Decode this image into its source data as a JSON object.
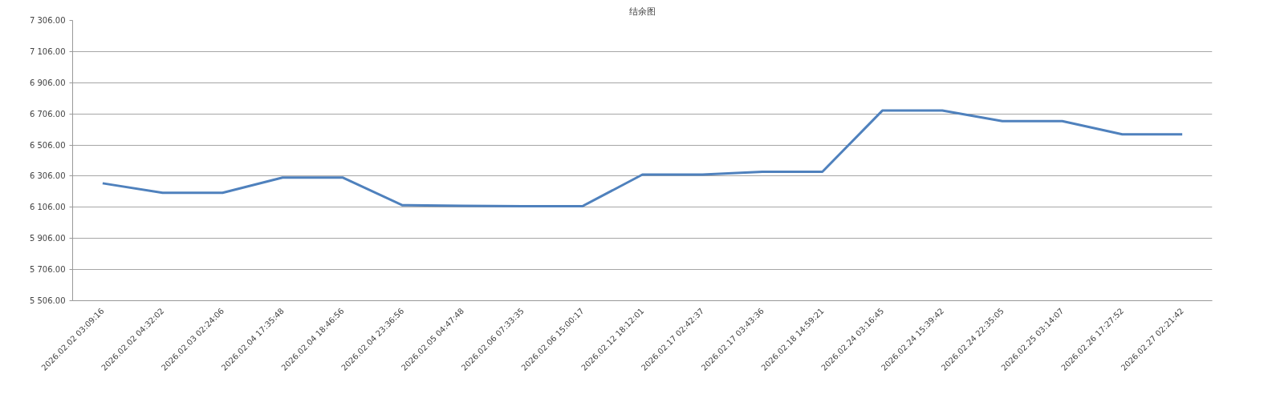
{
  "chart_data": {
    "type": "line",
    "title": "结余图",
    "categories": [
      "2026.02.02 03:09:16",
      "2026.02.02 04:32:02",
      "2026.02.03 02:24:06",
      "2026.02.04 17:35:48",
      "2026.02.04 18:46:56",
      "2026.02.04 23:36:56",
      "2026.02.05 04:47:48",
      "2026.02.06 07:33:35",
      "2026.02.06 15:00:17",
      "2026.02.12 18:12:01",
      "2026.02.17 02:42:37",
      "2026.02.17 03:43:36",
      "2026.02.18 14:59:21",
      "2026.02.24 03:16:45",
      "2026.02.24 15:39:42",
      "2026.02.24 22:35:05",
      "2026.02.25 03:14:07",
      "2026.02.26 17:27:52",
      "2026.02.27 02:21:42"
    ],
    "series": [
      {
        "color": "#4f81bd",
        "values": [
          6260,
          6199,
          6199,
          6297,
          6297,
          6119,
          6116,
          6113,
          6113,
          6316,
          6316,
          6334,
          6334,
          6727,
          6727,
          6659,
          6659,
          6574,
          6574
        ]
      }
    ],
    "ylim": [
      5506,
      7306
    ],
    "yticks": [
      {
        "value": 5506,
        "label": "5 506.00"
      },
      {
        "value": 5706,
        "label": "5 706.00"
      },
      {
        "value": 5906,
        "label": "5 906.00"
      },
      {
        "value": 6106,
        "label": "6 106.00"
      },
      {
        "value": 6306,
        "label": "6 306.00"
      },
      {
        "value": 6506,
        "label": "6 506.00"
      },
      {
        "value": 6706,
        "label": "6 706.00"
      },
      {
        "value": 6906,
        "label": "6 906.00"
      },
      {
        "value": 7106,
        "label": "7 106.00"
      },
      {
        "value": 7306,
        "label": "7 306.00"
      }
    ],
    "grid": "y",
    "marker": "none",
    "line_style": "solid"
  }
}
